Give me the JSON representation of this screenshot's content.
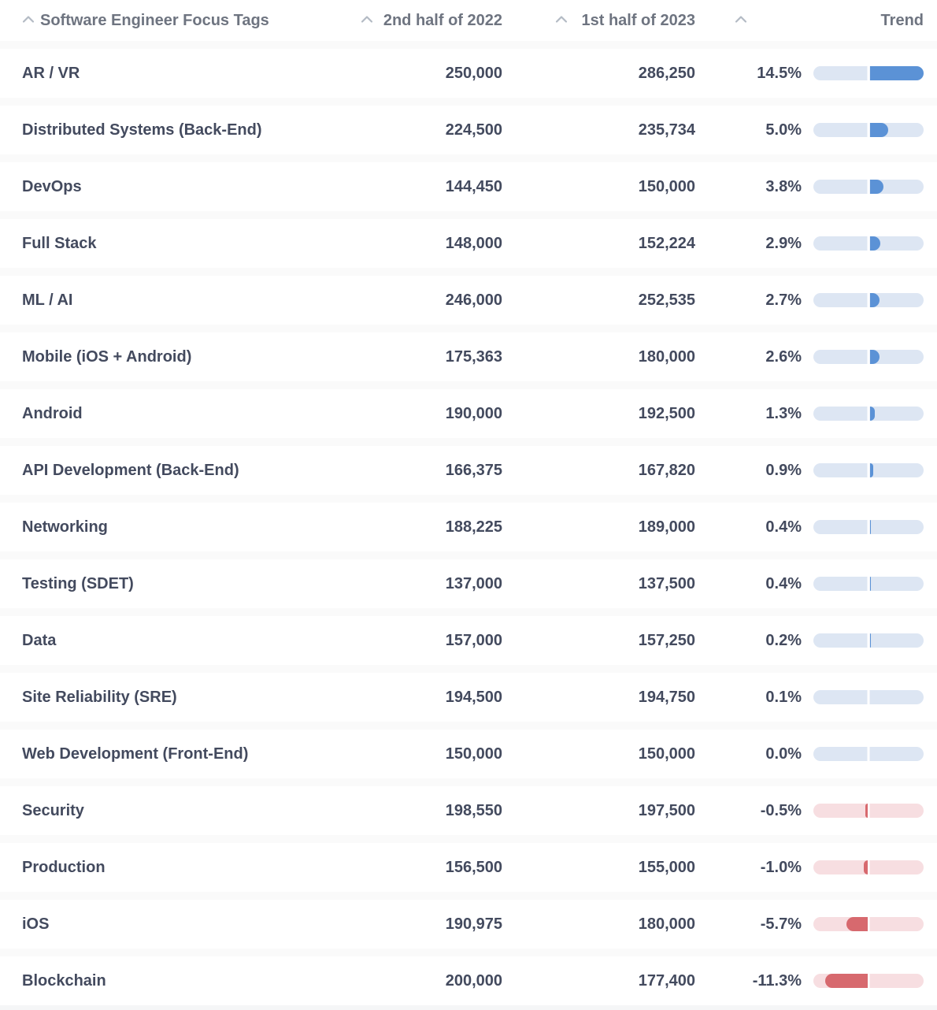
{
  "header": {
    "columns": [
      {
        "key": "tags",
        "label": "Software Engineer Focus Tags",
        "sort_icon": "chevron-up-icon"
      },
      {
        "key": "h2022",
        "label": "2nd half of 2022",
        "sort_icon": "chevron-up-icon"
      },
      {
        "key": "h2023",
        "label": "1st half of 2023",
        "sort_icon": "chevron-up-icon"
      },
      {
        "key": "trend",
        "label": "Trend",
        "sort_icon": "chevron-up-icon"
      }
    ]
  },
  "trend": {
    "scale_max_pct": 14.5,
    "positive_fill_color": "#5b92d6",
    "positive_track_color": "#dde6f3",
    "negative_fill_color": "#d7696e",
    "negative_track_color": "#f7dee1"
  },
  "colors": {
    "body_text": "#434a5e",
    "header_text": "#6e7480",
    "sort_caret": "#b3bac4",
    "row_separator": "#fafafa",
    "background": "#ffffff"
  },
  "rows": [
    {
      "tag": "AR / VR",
      "h2_2022": "250,000",
      "h1_2023": "286,250",
      "pct": "14.5%",
      "pct_value": 14.5
    },
    {
      "tag": "Distributed Systems (Back-End)",
      "h2_2022": "224,500",
      "h1_2023": "235,734",
      "pct": "5.0%",
      "pct_value": 5.0
    },
    {
      "tag": "DevOps",
      "h2_2022": "144,450",
      "h1_2023": "150,000",
      "pct": "3.8%",
      "pct_value": 3.8
    },
    {
      "tag": "Full Stack",
      "h2_2022": "148,000",
      "h1_2023": "152,224",
      "pct": "2.9%",
      "pct_value": 2.9
    },
    {
      "tag": "ML / AI",
      "h2_2022": "246,000",
      "h1_2023": "252,535",
      "pct": "2.7%",
      "pct_value": 2.7
    },
    {
      "tag": "Mobile (iOS + Android)",
      "h2_2022": "175,363",
      "h1_2023": "180,000",
      "pct": "2.6%",
      "pct_value": 2.6
    },
    {
      "tag": "Android",
      "h2_2022": "190,000",
      "h1_2023": "192,500",
      "pct": "1.3%",
      "pct_value": 1.3
    },
    {
      "tag": "API Development (Back-End)",
      "h2_2022": "166,375",
      "h1_2023": "167,820",
      "pct": "0.9%",
      "pct_value": 0.9
    },
    {
      "tag": "Networking",
      "h2_2022": "188,225",
      "h1_2023": "189,000",
      "pct": "0.4%",
      "pct_value": 0.4
    },
    {
      "tag": "Testing (SDET)",
      "h2_2022": "137,000",
      "h1_2023": "137,500",
      "pct": "0.4%",
      "pct_value": 0.4
    },
    {
      "tag": "Data",
      "h2_2022": "157,000",
      "h1_2023": "157,250",
      "pct": "0.2%",
      "pct_value": 0.2
    },
    {
      "tag": "Site Reliability (SRE)",
      "h2_2022": "194,500",
      "h1_2023": "194,750",
      "pct": "0.1%",
      "pct_value": 0.1
    },
    {
      "tag": "Web Development (Front-End)",
      "h2_2022": "150,000",
      "h1_2023": "150,000",
      "pct": "0.0%",
      "pct_value": 0.0
    },
    {
      "tag": "Security",
      "h2_2022": "198,550",
      "h1_2023": "197,500",
      "pct": "-0.5%",
      "pct_value": -0.5
    },
    {
      "tag": "Production",
      "h2_2022": "156,500",
      "h1_2023": "155,000",
      "pct": "-1.0%",
      "pct_value": -1.0
    },
    {
      "tag": "iOS",
      "h2_2022": "190,975",
      "h1_2023": "180,000",
      "pct": "-5.7%",
      "pct_value": -5.7
    },
    {
      "tag": "Blockchain",
      "h2_2022": "200,000",
      "h1_2023": "177,400",
      "pct": "-11.3%",
      "pct_value": -11.3
    }
  ]
}
